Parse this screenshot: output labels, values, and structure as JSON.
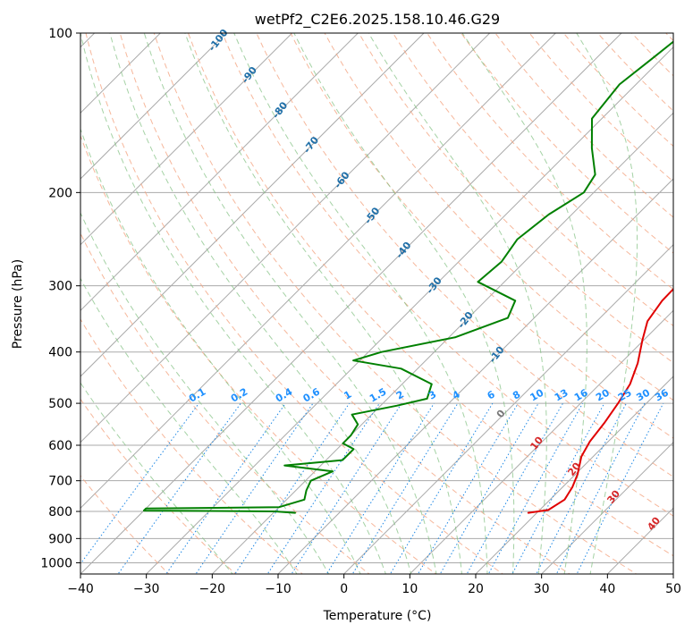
{
  "chart_data": {
    "type": "line",
    "subtype": "skew-T log-p diagram",
    "title": "wetPf2_C2E6.2025.158.10.46.G29",
    "xlabel": "Temperature (°C)",
    "ylabel": "Pressure (hPa)",
    "xlim": [
      -40,
      50
    ],
    "ylim": [
      1050,
      100
    ],
    "y_scale": "log",
    "x_ticks": [
      -40,
      -30,
      -20,
      -10,
      0,
      10,
      20,
      30,
      40,
      50
    ],
    "y_ticks": [
      100,
      200,
      300,
      400,
      500,
      600,
      700,
      800,
      900,
      1000
    ],
    "grid": true,
    "background_lines": {
      "isotherm_color": "#aaaaaa",
      "dry_adiabat_color": "#f4a582",
      "moist_adiabat_color": "#7fbf7f",
      "mixing_ratio_color": "#1e88e5",
      "dry_adiabat_labels": [
        "-100",
        "-90",
        "-80",
        "-70",
        "-60",
        "-50",
        "-40",
        "-30",
        "-20",
        "-10"
      ],
      "moist_adiabat_labels": [
        "0",
        "10",
        "20",
        "30",
        "40"
      ],
      "mixing_ratio_labels": [
        "0.1",
        "0.2",
        "0.4",
        "0.6",
        "1",
        "1.5",
        "2",
        "3",
        "4",
        "6",
        "8",
        "10",
        "13",
        "16",
        "20",
        "25",
        "30",
        "36"
      ]
    },
    "series": [
      {
        "color": "#e00000",
        "kind": "temperature",
        "points": [
          {
            "p": 805,
            "t": 18.7
          },
          {
            "p": 795,
            "t": 21.3
          },
          {
            "p": 760,
            "t": 22.2
          },
          {
            "p": 720,
            "t": 21.5
          },
          {
            "p": 680,
            "t": 20.3
          },
          {
            "p": 630,
            "t": 18.2
          },
          {
            "p": 590,
            "t": 17.2
          },
          {
            "p": 545,
            "t": 16.6
          },
          {
            "p": 500,
            "t": 15.7
          },
          {
            "p": 460,
            "t": 14.6
          },
          {
            "p": 420,
            "t": 12.6
          },
          {
            "p": 380,
            "t": 9.8
          },
          {
            "p": 350,
            "t": 7.7
          },
          {
            "p": 320,
            "t": 6.8
          },
          {
            "p": 295,
            "t": 6.7
          },
          {
            "p": 270,
            "t": 5.3
          },
          {
            "p": 245,
            "t": 2.9
          },
          {
            "p": 220,
            "t": 0.3
          },
          {
            "p": 200,
            "t": -2.0
          },
          {
            "p": 185,
            "t": -3.9
          },
          {
            "p": 165,
            "t": -4.5
          },
          {
            "p": 145,
            "t": -5.6
          },
          {
            "p": 128,
            "t": -5.8
          },
          {
            "p": 118,
            "t": -3.3
          },
          {
            "p": 108,
            "t": -3.0
          },
          {
            "p": 100,
            "t": -3.8
          }
        ]
      },
      {
        "color": "#008000",
        "kind": "dewpoint",
        "points": [
          {
            "p": 805,
            "t": -16.7
          },
          {
            "p": 800,
            "t": -20.0
          },
          {
            "p": 797,
            "t": -40.0
          },
          {
            "p": 790,
            "t": -40.0
          },
          {
            "p": 785,
            "t": -20.0
          },
          {
            "p": 760,
            "t": -17.3
          },
          {
            "p": 730,
            "t": -18.4
          },
          {
            "p": 700,
            "t": -19.2
          },
          {
            "p": 672,
            "t": -17.3
          },
          {
            "p": 655,
            "t": -25.5
          },
          {
            "p": 640,
            "t": -17.5
          },
          {
            "p": 610,
            "t": -17.5
          },
          {
            "p": 595,
            "t": -20.0
          },
          {
            "p": 575,
            "t": -20.0
          },
          {
            "p": 548,
            "t": -20.6
          },
          {
            "p": 525,
            "t": -23.0
          },
          {
            "p": 505,
            "t": -17.5
          },
          {
            "p": 490,
            "t": -14.0
          },
          {
            "p": 460,
            "t": -15.5
          },
          {
            "p": 430,
            "t": -22.5
          },
          {
            "p": 415,
            "t": -31.0
          },
          {
            "p": 400,
            "t": -28.0
          },
          {
            "p": 375,
            "t": -19.0
          },
          {
            "p": 345,
            "t": -14.0
          },
          {
            "p": 320,
            "t": -15.5
          },
          {
            "p": 295,
            "t": -24.0
          },
          {
            "p": 270,
            "t": -23.5
          },
          {
            "p": 245,
            "t": -24.5
          },
          {
            "p": 220,
            "t": -23.5
          },
          {
            "p": 200,
            "t": -21.5
          },
          {
            "p": 185,
            "t": -22.5
          },
          {
            "p": 165,
            "t": -27.0
          },
          {
            "p": 145,
            "t": -31.5
          },
          {
            "p": 125,
            "t": -32.5
          },
          {
            "p": 112,
            "t": -31.5
          },
          {
            "p": 100,
            "t": -30.5
          }
        ]
      }
    ]
  }
}
